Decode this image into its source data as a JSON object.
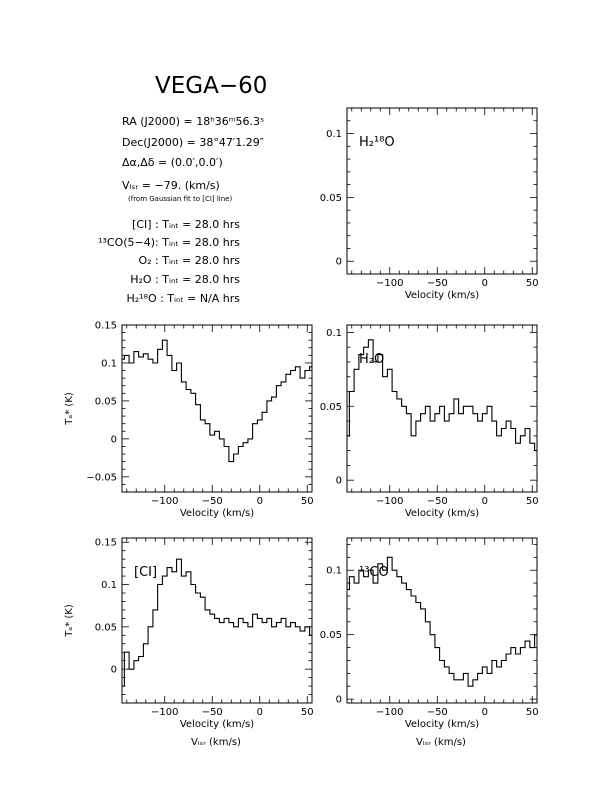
{
  "title": "VEGA−60",
  "info": {
    "ra": "RA (J2000) =  18ʰ36ᵐ56.3ˢ",
    "dec": "Dec(J2000) =  38°47′1.29″",
    "offset": "Δα,Δδ = (0.0′,0.0′)",
    "vlsr": "Vₗₛᵣ = −79. (km/s)",
    "vlsr_note": "(from Gaussian fit to [CI] line)",
    "lines": [
      "[CI] : Tᵢₙₜ = 28.0 hrs",
      "¹³CO(5−4): Tᵢₙₜ = 28.0 hrs",
      "O₂ : Tᵢₙₜ = 28.0 hrs",
      "H₂O : Tᵢₙₜ = 28.0 hrs",
      "H₂¹⁸O : Tᵢₙₜ = N/A hrs"
    ]
  },
  "chart_data": [
    {
      "type": "line",
      "panel": "H2_18O",
      "label": "H₂¹⁸O",
      "xlabel": "Velocity (km/s)",
      "ylabel": "",
      "xlim": [
        -145,
        55
      ],
      "ylim": [
        -0.01,
        0.12
      ],
      "xticks": [
        -100,
        -50,
        0,
        50
      ],
      "yticks": [
        0,
        0.05,
        0.1
      ],
      "series": []
    },
    {
      "type": "line",
      "panel": "O2",
      "label": "",
      "xlabel": "Velocity (km/s)",
      "ylabel": "Tₐ* (K)",
      "xlim": [
        -145,
        55
      ],
      "ylim": [
        -0.07,
        0.15
      ],
      "xticks": [
        -100,
        -50,
        0,
        50
      ],
      "yticks": [
        -0.05,
        0,
        0.05,
        0.1,
        0.15
      ],
      "series": [
        {
          "x": [
            -145,
            -140,
            -135,
            -130,
            -125,
            -120,
            -115,
            -110,
            -105,
            -100,
            -95,
            -90,
            -85,
            -80,
            -75,
            -70,
            -65,
            -60,
            -55,
            -50,
            -45,
            -40,
            -35,
            -30,
            -25,
            -20,
            -15,
            -10,
            -5,
            0,
            5,
            10,
            15,
            20,
            25,
            30,
            35,
            40,
            45,
            50,
            55
          ],
          "y": [
            0.105,
            0.11,
            0.1,
            0.115,
            0.108,
            0.112,
            0.105,
            0.1,
            0.118,
            0.13,
            0.11,
            0.09,
            0.1,
            0.075,
            0.065,
            0.06,
            0.045,
            0.025,
            0.02,
            0.005,
            0.01,
            0.0,
            -0.01,
            -0.03,
            -0.02,
            -0.01,
            -0.005,
            0.0,
            0.02,
            0.025,
            0.035,
            0.05,
            0.055,
            0.07,
            0.075,
            0.085,
            0.09,
            0.095,
            0.08,
            0.09,
            0.095
          ]
        }
      ]
    },
    {
      "type": "line",
      "panel": "H2O",
      "label": "H₂O",
      "xlabel": "Velocity (km/s)",
      "ylabel": "",
      "xlim": [
        -145,
        55
      ],
      "ylim": [
        -0.008,
        0.105
      ],
      "xticks": [
        -100,
        -50,
        0,
        50
      ],
      "yticks": [
        0,
        0.05,
        0.1
      ],
      "series": [
        {
          "x": [
            -145,
            -140,
            -135,
            -130,
            -125,
            -120,
            -115,
            -110,
            -105,
            -100,
            -95,
            -90,
            -85,
            -80,
            -75,
            -70,
            -65,
            -60,
            -55,
            -50,
            -45,
            -40,
            -35,
            -30,
            -25,
            -20,
            -15,
            -10,
            -5,
            0,
            5,
            10,
            15,
            20,
            25,
            30,
            35,
            40,
            45,
            50,
            55
          ],
          "y": [
            0.03,
            0.06,
            0.075,
            0.085,
            0.09,
            0.095,
            0.08,
            0.085,
            0.07,
            0.075,
            0.06,
            0.055,
            0.05,
            0.045,
            0.03,
            0.04,
            0.045,
            0.05,
            0.04,
            0.045,
            0.05,
            0.04,
            0.045,
            0.055,
            0.045,
            0.05,
            0.05,
            0.045,
            0.04,
            0.045,
            0.05,
            0.04,
            0.03,
            0.035,
            0.04,
            0.035,
            0.025,
            0.03,
            0.035,
            0.025,
            0.02
          ]
        }
      ]
    },
    {
      "type": "line",
      "panel": "CI",
      "label": "[CI]",
      "xlabel": "Velocity (km/s)",
      "ylabel": "Tₐ* (K)",
      "xlim": [
        -145,
        55
      ],
      "ylim": [
        -0.04,
        0.155
      ],
      "xticks": [
        -100,
        -50,
        0,
        50
      ],
      "yticks": [
        0,
        0.05,
        0.1,
        0.15
      ],
      "series": [
        {
          "x": [
            -145,
            -140,
            -135,
            -130,
            -125,
            -120,
            -115,
            -110,
            -105,
            -100,
            -95,
            -90,
            -85,
            -80,
            -75,
            -70,
            -65,
            -60,
            -55,
            -50,
            -45,
            -40,
            -35,
            -30,
            -25,
            -20,
            -15,
            -10,
            -5,
            0,
            5,
            10,
            15,
            20,
            25,
            30,
            35,
            40,
            45,
            50,
            55
          ],
          "y": [
            -0.02,
            0.02,
            0.0,
            0.01,
            0.015,
            0.03,
            0.05,
            0.07,
            0.1,
            0.11,
            0.12,
            0.115,
            0.13,
            0.11,
            0.115,
            0.1,
            0.09,
            0.085,
            0.07,
            0.065,
            0.06,
            0.055,
            0.06,
            0.055,
            0.05,
            0.06,
            0.055,
            0.05,
            0.065,
            0.06,
            0.055,
            0.06,
            0.05,
            0.055,
            0.06,
            0.05,
            0.055,
            0.05,
            0.045,
            0.05,
            0.04
          ]
        }
      ]
    },
    {
      "type": "line",
      "panel": "13CO",
      "label": "¹³CO",
      "xlabel": "Velocity (km/s)",
      "ylabel": "",
      "xlim": [
        -145,
        55
      ],
      "ylim": [
        -0.003,
        0.125
      ],
      "xticks": [
        -100,
        -50,
        0,
        50
      ],
      "yticks": [
        0,
        0.05,
        0.1
      ],
      "series": [
        {
          "x": [
            -145,
            -140,
            -135,
            -130,
            -125,
            -120,
            -115,
            -110,
            -105,
            -100,
            -95,
            -90,
            -85,
            -80,
            -75,
            -70,
            -65,
            -60,
            -55,
            -50,
            -45,
            -40,
            -35,
            -30,
            -25,
            -20,
            -15,
            -10,
            -5,
            0,
            5,
            10,
            15,
            20,
            25,
            30,
            35,
            40,
            45,
            50,
            55
          ],
          "y": [
            0.085,
            0.095,
            0.09,
            0.1,
            0.095,
            0.1,
            0.09,
            0.105,
            0.1,
            0.11,
            0.1,
            0.095,
            0.09,
            0.085,
            0.08,
            0.075,
            0.07,
            0.06,
            0.05,
            0.04,
            0.03,
            0.025,
            0.02,
            0.015,
            0.015,
            0.02,
            0.01,
            0.015,
            0.02,
            0.025,
            0.02,
            0.03,
            0.025,
            0.03,
            0.035,
            0.04,
            0.035,
            0.04,
            0.045,
            0.04,
            0.05
          ]
        }
      ]
    }
  ],
  "bottom_labels": [
    "Vₗₛᵣ (km/s)",
    "Vₗₛᵣ (km/s)"
  ]
}
